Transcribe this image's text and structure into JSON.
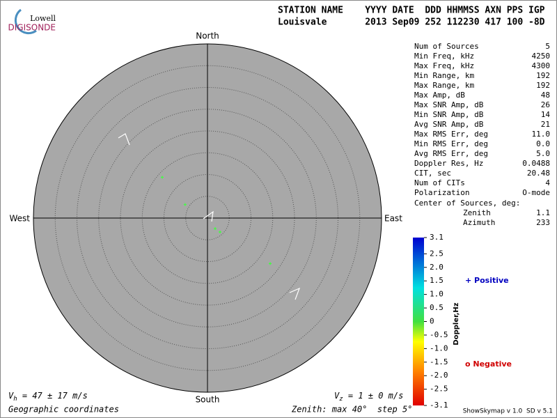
{
  "header": {
    "logo_top": "Lowell",
    "logo_bottom": "DIGISONDE",
    "line1": "STATION NAME    YYYY DATE  DDD HHMMSS AXN PPS IGP",
    "line2": "Louisvale       2013 Sep09 252 112230 417 100 -8D"
  },
  "compass": {
    "north": "North",
    "south": "South",
    "east": "East",
    "west": "West"
  },
  "plot": {
    "zenith_max": 40,
    "zenith_step": 5
  },
  "sources": [
    {
      "zenith": 14.0,
      "azimuth": 312
    },
    {
      "zenith": 6.0,
      "azimuth": 301
    },
    {
      "zenith": 3.0,
      "azimuth": 144
    },
    {
      "zenith": 4.3,
      "azimuth": 138
    },
    {
      "zenith": 17.8,
      "azimuth": 126
    }
  ],
  "stats": {
    "rows": [
      [
        "Num of Sources",
        "5"
      ],
      [
        "Min Freq, kHz",
        "4250"
      ],
      [
        "Max Freq, kHz",
        "4300"
      ],
      [
        "Min Range, km",
        "192"
      ],
      [
        "Max Range, km",
        "192"
      ],
      [
        "Max Amp, dB",
        "48"
      ],
      [
        "Max SNR Amp, dB",
        "26"
      ],
      [
        "Min SNR Amp, dB",
        "14"
      ],
      [
        "Avg SNR Amp, dB",
        "21"
      ],
      [
        "Max RMS Err, deg",
        "11.0"
      ],
      [
        "Min RMS Err, deg",
        "0.0"
      ],
      [
        "Avg RMS Err, deg",
        "5.0"
      ],
      [
        "Doppler Res, Hz",
        "0.0488"
      ],
      [
        "CIT, sec",
        "20.48"
      ],
      [
        "Num of CITs",
        "4"
      ],
      [
        "Polarization",
        "O-mode"
      ]
    ],
    "center": {
      "label": "Center of Sources, deg:",
      "zenith": [
        "Zenith",
        "1.1"
      ],
      "azimuth": [
        "Azimuth",
        "233"
      ]
    }
  },
  "colorbar": {
    "label": "Doppler,Hz",
    "lim": [
      -3.1,
      3.1
    ],
    "ticks": [
      3.1,
      2.5,
      {
        "value": 2,
        "label": "2.0"
      },
      1.5,
      {
        "value": 1,
        "label": "1.0"
      },
      0.5,
      0,
      -0.5,
      {
        "value": -1,
        "label": "-1.0"
      },
      -1.5,
      {
        "value": -2,
        "label": "-2.0"
      },
      -2.5,
      -3.1
    ]
  },
  "legend": {
    "positive": "+ Positive",
    "negative": "o Negative"
  },
  "footer": {
    "vh": [
      "V",
      "h",
      " = 47 ± 17 m/s"
    ],
    "vz": [
      "V",
      "z",
      " = 1 ± 0 m/s"
    ],
    "coords": "Geographic coordinates",
    "zenith": "Zenith: max 40°  step 5°",
    "version": "ShowSkymap v 1.0  SD v 5.1"
  }
}
